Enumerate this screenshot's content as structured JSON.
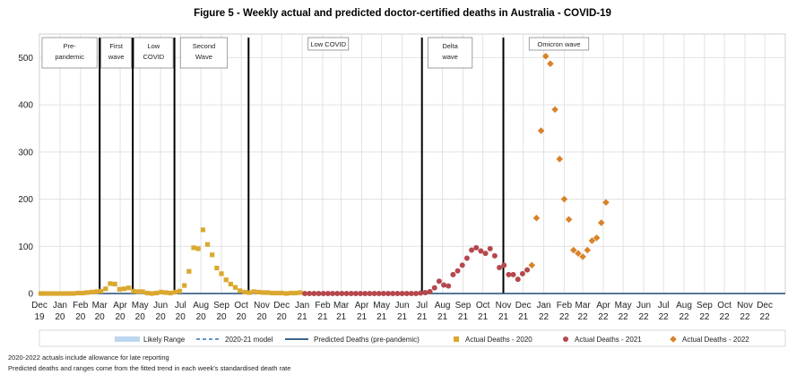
{
  "chart_data": {
    "type": "scatter",
    "title": "Figure 5 - Weekly actual and predicted doctor-certified deaths in Australia - COVID-19",
    "xlabel": "",
    "ylabel": "",
    "ylim": [
      0,
      550
    ],
    "yticks": [
      0,
      100,
      200,
      300,
      400,
      500
    ],
    "x_tick_labels": [
      [
        "Dec",
        "19"
      ],
      [
        "Jan",
        "20"
      ],
      [
        "Feb",
        "20"
      ],
      [
        "Mar",
        "20"
      ],
      [
        "Apr",
        "20"
      ],
      [
        "May",
        "20"
      ],
      [
        "Jun",
        "20"
      ],
      [
        "Jul",
        "20"
      ],
      [
        "Aug",
        "20"
      ],
      [
        "Sep",
        "20"
      ],
      [
        "Oct",
        "20"
      ],
      [
        "Nov",
        "20"
      ],
      [
        "Dec",
        "20"
      ],
      [
        "Jan",
        "21"
      ],
      [
        "Feb",
        "21"
      ],
      [
        "Mar",
        "21"
      ],
      [
        "Apr",
        "21"
      ],
      [
        "May",
        "21"
      ],
      [
        "Jun",
        "21"
      ],
      [
        "Jul",
        "21"
      ],
      [
        "Aug",
        "21"
      ],
      [
        "Sep",
        "21"
      ],
      [
        "Oct",
        "21"
      ],
      [
        "Nov",
        "21"
      ],
      [
        "Dec",
        "21"
      ],
      [
        "Jan",
        "22"
      ],
      [
        "Feb",
        "22"
      ],
      [
        "Mar",
        "22"
      ],
      [
        "Apr",
        "22"
      ],
      [
        "May",
        "22"
      ],
      [
        "Jun",
        "22"
      ],
      [
        "Jul",
        "22"
      ],
      [
        "Aug",
        "22"
      ],
      [
        "Sep",
        "22"
      ],
      [
        "Oct",
        "22"
      ],
      [
        "Nov",
        "22"
      ],
      [
        "Dec",
        "22"
      ]
    ],
    "grid": true,
    "legend_position": "bottom",
    "period_dividers": [
      "2020-03-01",
      "2020-04-20",
      "2020-06-22",
      "2020-10-12",
      "2021-07-01",
      "2021-11-01"
    ],
    "period_labels": [
      {
        "text": [
          "Pre-",
          "pandemic"
        ],
        "start": "2019-12-05",
        "end": "2020-02-26",
        "boxed": true
      },
      {
        "text": [
          "First",
          "wave"
        ],
        "start": "2020-03-03",
        "end": "2020-04-18",
        "boxed": true
      },
      {
        "text": [
          "Low",
          "COVID"
        ],
        "start": "2020-04-22",
        "end": "2020-06-20",
        "boxed": true
      },
      {
        "text": [
          "Second",
          "Wave"
        ],
        "start": "2020-07-01",
        "end": "2020-09-10",
        "boxed": true
      },
      {
        "text": [
          "Low COVID"
        ],
        "start": "2021-01-10",
        "end": "2021-03-12",
        "boxed": true
      },
      {
        "text": [
          "Delta",
          "wave"
        ],
        "start": "2021-07-10",
        "end": "2021-09-15",
        "boxed": true
      },
      {
        "text": [
          "Omicron wave"
        ],
        "start": "2021-12-10",
        "end": "2022-03-10",
        "boxed": true
      }
    ],
    "series": [
      {
        "name": "Likely Range",
        "kind": "band",
        "color": "#bdd7ee"
      },
      {
        "name": "2020-21 model",
        "kind": "dashed-line",
        "color": "#2e75b6"
      },
      {
        "name": "Predicted Deaths (pre-pandemic)",
        "kind": "line",
        "color": "#1f4e79",
        "x": [
          "2019-12-01",
          "2022-12-31"
        ],
        "values": [
          0,
          0
        ]
      },
      {
        "name": "Actual Deaths - 2020",
        "kind": "square",
        "color": "#dba82f",
        "x": [
          "2019-12-03",
          "2019-12-10",
          "2019-12-17",
          "2019-12-24",
          "2019-12-31",
          "2020-01-07",
          "2020-01-14",
          "2020-01-21",
          "2020-01-28",
          "2020-02-04",
          "2020-02-11",
          "2020-02-18",
          "2020-02-25",
          "2020-03-03",
          "2020-03-10",
          "2020-03-17",
          "2020-03-24",
          "2020-03-31",
          "2020-04-07",
          "2020-04-14",
          "2020-04-21",
          "2020-04-28",
          "2020-05-05",
          "2020-05-12",
          "2020-05-19",
          "2020-05-26",
          "2020-06-02",
          "2020-06-09",
          "2020-06-16",
          "2020-06-23",
          "2020-06-30",
          "2020-07-07",
          "2020-07-14",
          "2020-07-21",
          "2020-07-28",
          "2020-08-04",
          "2020-08-11",
          "2020-08-18",
          "2020-08-25",
          "2020-09-01",
          "2020-09-08",
          "2020-09-15",
          "2020-09-22",
          "2020-09-29",
          "2020-10-06",
          "2020-10-13",
          "2020-10-20",
          "2020-10-27",
          "2020-11-03",
          "2020-11-10",
          "2020-11-17",
          "2020-11-24",
          "2020-12-01",
          "2020-12-08",
          "2020-12-15",
          "2020-12-22",
          "2020-12-29"
        ],
        "values": [
          0,
          0,
          0,
          0,
          0,
          0,
          0,
          0,
          1,
          1,
          2,
          3,
          4,
          5,
          10,
          21,
          20,
          9,
          10,
          12,
          5,
          4,
          4,
          1,
          0,
          1,
          3,
          2,
          1,
          3,
          5,
          17,
          47,
          97,
          95,
          135,
          104,
          82,
          54,
          42,
          29,
          20,
          13,
          6,
          3,
          2,
          4,
          3,
          2,
          2,
          1,
          1,
          1,
          0,
          1,
          1,
          2
        ]
      },
      {
        "name": "Actual Deaths - 2021",
        "kind": "circle",
        "color": "#b5484d",
        "x": [
          "2021-01-05",
          "2021-01-12",
          "2021-01-19",
          "2021-01-26",
          "2021-02-02",
          "2021-02-09",
          "2021-02-16",
          "2021-02-23",
          "2021-03-02",
          "2021-03-09",
          "2021-03-16",
          "2021-03-23",
          "2021-03-30",
          "2021-04-06",
          "2021-04-13",
          "2021-04-20",
          "2021-04-27",
          "2021-05-04",
          "2021-05-11",
          "2021-05-18",
          "2021-05-25",
          "2021-06-01",
          "2021-06-08",
          "2021-06-15",
          "2021-06-22",
          "2021-06-29",
          "2021-07-06",
          "2021-07-13",
          "2021-07-20",
          "2021-07-27",
          "2021-08-03",
          "2021-08-10",
          "2021-08-17",
          "2021-08-24",
          "2021-08-31",
          "2021-09-07",
          "2021-09-14",
          "2021-09-21",
          "2021-09-28",
          "2021-10-05",
          "2021-10-12",
          "2021-10-19",
          "2021-10-26",
          "2021-11-02",
          "2021-11-09",
          "2021-11-16",
          "2021-11-23",
          "2021-11-30",
          "2021-12-07"
        ],
        "values": [
          0,
          0,
          0,
          0,
          0,
          0,
          0,
          0,
          0,
          0,
          0,
          0,
          0,
          0,
          0,
          0,
          0,
          0,
          0,
          0,
          0,
          0,
          0,
          0,
          0,
          1,
          2,
          4,
          12,
          26,
          18,
          16,
          40,
          48,
          60,
          75,
          92,
          97,
          90,
          85,
          95,
          80,
          55,
          60,
          40,
          40,
          30,
          42,
          50
        ]
      },
      {
        "name": "Actual Deaths - 2022",
        "kind": "diamond",
        "color": "#d9822b",
        "x": [
          "2021-12-14",
          "2021-12-21",
          "2021-12-28",
          "2022-01-04",
          "2022-01-11",
          "2022-01-18",
          "2022-01-25",
          "2022-02-01",
          "2022-02-08",
          "2022-02-15",
          "2022-02-22",
          "2022-03-01",
          "2022-03-08",
          "2022-03-15",
          "2022-03-22",
          "2022-03-29"
        ],
        "values": [
          60,
          160,
          345,
          503,
          487,
          390,
          285,
          200,
          157,
          92,
          85,
          78,
          92,
          112,
          118,
          150
        ]
      },
      {
        "name": "Actual Deaths - 2022",
        "kind": "diamond-extra",
        "color": "#d9822b",
        "x": [
          "2022-04-05"
        ],
        "values": [
          193
        ]
      }
    ]
  },
  "footnotes": [
    "2020-2022  actuals include allowance for late reporting",
    "Predicted deaths and ranges come from the fitted trend in each week's standardised death rate"
  ]
}
